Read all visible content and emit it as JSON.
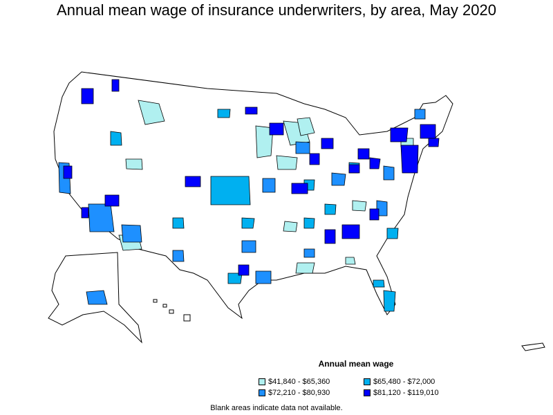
{
  "title": "Annual mean wage of insurance underwriters, by area, May 2020",
  "legend": {
    "title": "Annual mean wage",
    "items": [
      {
        "label": "$41,840 - $65,360",
        "color": "#b0f0f0"
      },
      {
        "label": "$65,480 - $72,000",
        "color": "#00b0f0"
      },
      {
        "label": "$72,210 - $80,930",
        "color": "#1e90ff"
      },
      {
        "label": "$81,120 - $119,010",
        "color": "#0000ff"
      }
    ]
  },
  "note": "Blank areas indicate data not available."
}
